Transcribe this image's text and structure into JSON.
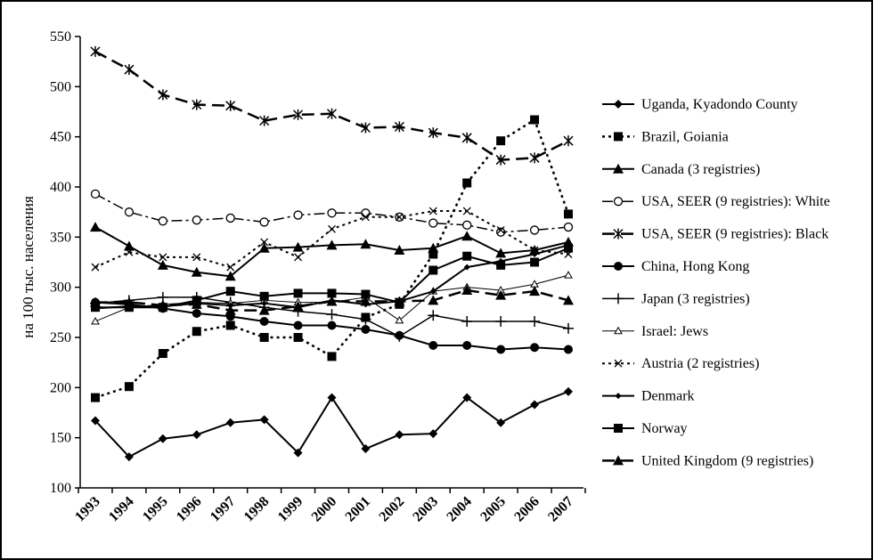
{
  "chart_data": {
    "type": "line",
    "title": "",
    "xlabel": "",
    "ylabel": "на 100 тыс. населения",
    "ylim": [
      100,
      550
    ],
    "y_ticks": [
      "100",
      "150",
      "200",
      "250",
      "300",
      "350",
      "400",
      "450",
      "500",
      "550"
    ],
    "categories": [
      "1993",
      "1994",
      "1995",
      "1996",
      "1997",
      "1998",
      "1999",
      "2000",
      "2001",
      "2002",
      "2003",
      "2004",
      "2005",
      "2006",
      "2007"
    ],
    "grid": false,
    "legend_position": "right",
    "series": [
      {
        "name": "Uganda, Kyadondo County",
        "marker": "diamond",
        "dash": "solid",
        "line_width": 2,
        "values": [
          167,
          131,
          149,
          153,
          165,
          168,
          135,
          190,
          139,
          153,
          154,
          190,
          165,
          183,
          196
        ]
      },
      {
        "name": "Brazil, Goiania",
        "marker": "square",
        "dash": "dotted",
        "line_width": 2.5,
        "values": [
          190,
          201,
          234,
          256,
          262,
          250,
          250,
          231,
          270,
          283,
          333,
          404,
          446,
          467,
          373
        ]
      },
      {
        "name": "Canada (3 registries)",
        "marker": "triangle",
        "dash": "solid",
        "line_width": 2,
        "values": [
          360,
          341,
          322,
          315,
          311,
          339,
          340,
          342,
          343,
          337,
          339,
          351,
          334,
          337,
          345
        ]
      },
      {
        "name": "USA, SEER (9 registries): White",
        "marker": "open-circle",
        "dash": "dashdot",
        "line_width": 1.5,
        "values": [
          393,
          375,
          366,
          367,
          369,
          365,
          372,
          374,
          374,
          370,
          364,
          362,
          355,
          357,
          360
        ]
      },
      {
        "name": "USA, SEER (9 registries): Black",
        "marker": "star",
        "dash": "longdash",
        "line_width": 2.5,
        "values": [
          535,
          517,
          492,
          482,
          481,
          466,
          472,
          473,
          459,
          460,
          454,
          449,
          427,
          429,
          446
        ]
      },
      {
        "name": "China, Hong Kong",
        "marker": "circle",
        "dash": "solid",
        "line_width": 2,
        "values": [
          285,
          283,
          279,
          274,
          271,
          266,
          262,
          262,
          258,
          252,
          242,
          242,
          238,
          240,
          238
        ]
      },
      {
        "name": "Japan (3 registries)",
        "marker": "plus",
        "dash": "solid",
        "line_width": 1.5,
        "values": [
          284,
          287,
          290,
          290,
          285,
          280,
          276,
          273,
          268,
          251,
          272,
          266,
          266,
          266,
          259
        ]
      },
      {
        "name": "Israel: Jews",
        "marker": "small-triangle",
        "dash": "solid",
        "line_width": 1,
        "values": [
          266,
          280,
          283,
          285,
          284,
          287,
          285,
          285,
          290,
          267,
          296,
          300,
          297,
          303,
          312
        ]
      },
      {
        "name": "Austria (2 registries)",
        "marker": "x",
        "dash": "dotted",
        "line_width": 2,
        "values": [
          320,
          335,
          330,
          330,
          320,
          345,
          330,
          358,
          370,
          370,
          376,
          376,
          357,
          337,
          333
        ]
      },
      {
        "name": "Denmark",
        "marker": "small-diamond",
        "dash": "solid",
        "line_width": 2,
        "values": [
          279,
          281,
          281,
          284,
          282,
          284,
          280,
          287,
          283,
          286,
          296,
          320,
          326,
          333,
          342
        ]
      },
      {
        "name": "Norway",
        "marker": "square",
        "dash": "solid",
        "line_width": 2,
        "values": [
          280,
          280,
          280,
          287,
          296,
          291,
          294,
          294,
          293,
          285,
          317,
          331,
          322,
          325,
          339
        ]
      },
      {
        "name": "United Kingdom (9 registries)",
        "marker": "triangle",
        "dash": "longdash",
        "line_width": 2.5,
        "values": [
          285,
          285,
          282,
          283,
          277,
          277,
          281,
          286,
          286,
          286,
          287,
          297,
          292,
          296,
          287
        ]
      }
    ]
  }
}
